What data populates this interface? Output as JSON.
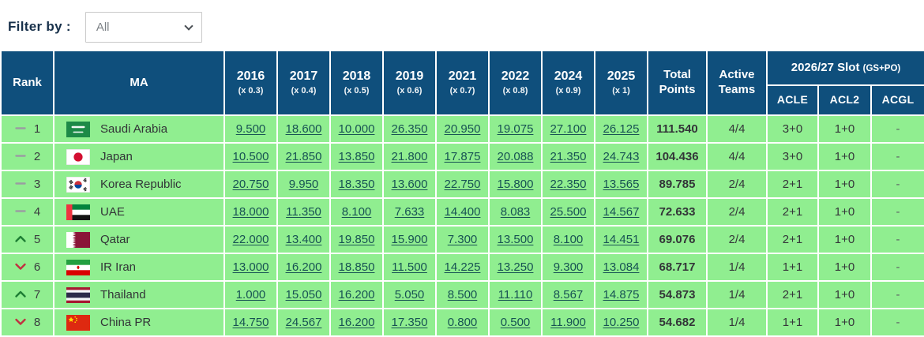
{
  "filter": {
    "label": "Filter by :",
    "selected": "All"
  },
  "table": {
    "headers": {
      "rank": "Rank",
      "ma": "MA",
      "total": "Total Points",
      "active": "Active Teams",
      "slot_title": "2026/27 Slot",
      "slot_suffix": "(GS+PO)",
      "slot_cols": [
        "ACLE",
        "ACL2",
        "ACGL"
      ]
    },
    "years": [
      {
        "year": "2016",
        "multiplier": "(x 0.3)"
      },
      {
        "year": "2017",
        "multiplier": "(x 0.4)"
      },
      {
        "year": "2018",
        "multiplier": "(x 0.5)"
      },
      {
        "year": "2019",
        "multiplier": "(x 0.6)"
      },
      {
        "year": "2021",
        "multiplier": "(x 0.7)"
      },
      {
        "year": "2022",
        "multiplier": "(x 0.8)"
      },
      {
        "year": "2024",
        "multiplier": "(x 0.9)"
      },
      {
        "year": "2025",
        "multiplier": "(x 1)"
      }
    ],
    "rows": [
      {
        "trend": "same",
        "rank": "1",
        "flag": "saudi-arabia",
        "country": "Saudi Arabia",
        "scores": [
          "9.500",
          "18.600",
          "10.000",
          "26.350",
          "20.950",
          "19.075",
          "27.100",
          "26.125"
        ],
        "total": "111.540",
        "active": "4/4",
        "acle": "3+0",
        "acl2": "1+0",
        "acgl": "-"
      },
      {
        "trend": "same",
        "rank": "2",
        "flag": "japan",
        "country": "Japan",
        "scores": [
          "10.500",
          "21.850",
          "13.850",
          "21.800",
          "17.875",
          "20.088",
          "21.350",
          "24.743"
        ],
        "total": "104.436",
        "active": "4/4",
        "acle": "3+0",
        "acl2": "1+0",
        "acgl": "-"
      },
      {
        "trend": "same",
        "rank": "3",
        "flag": "korea-republic",
        "country": "Korea Republic",
        "scores": [
          "20.750",
          "9.950",
          "18.350",
          "13.600",
          "22.750",
          "15.800",
          "22.350",
          "13.565"
        ],
        "total": "89.785",
        "active": "2/4",
        "acle": "2+1",
        "acl2": "1+0",
        "acgl": "-"
      },
      {
        "trend": "same",
        "rank": "4",
        "flag": "uae",
        "country": "UAE",
        "scores": [
          "18.000",
          "11.350",
          "8.100",
          "7.633",
          "14.400",
          "8.083",
          "25.500",
          "14.567"
        ],
        "total": "72.633",
        "active": "2/4",
        "acle": "2+1",
        "acl2": "1+0",
        "acgl": "-"
      },
      {
        "trend": "up",
        "rank": "5",
        "flag": "qatar",
        "country": "Qatar",
        "scores": [
          "22.000",
          "13.400",
          "19.850",
          "15.900",
          "7.300",
          "13.500",
          "8.100",
          "14.451"
        ],
        "total": "69.076",
        "active": "2/4",
        "acle": "2+1",
        "acl2": "1+0",
        "acgl": "-"
      },
      {
        "trend": "down",
        "rank": "6",
        "flag": "ir-iran",
        "country": "IR Iran",
        "scores": [
          "13.000",
          "16.200",
          "18.850",
          "11.500",
          "14.225",
          "13.250",
          "9.300",
          "13.084"
        ],
        "total": "68.717",
        "active": "1/4",
        "acle": "1+1",
        "acl2": "1+0",
        "acgl": "-"
      },
      {
        "trend": "up",
        "rank": "7",
        "flag": "thailand",
        "country": "Thailand",
        "scores": [
          "1.000",
          "15.050",
          "16.200",
          "5.050",
          "8.500",
          "11.110",
          "8.567",
          "14.875"
        ],
        "total": "54.873",
        "active": "1/4",
        "acle": "2+1",
        "acl2": "1+0",
        "acgl": "-"
      },
      {
        "trend": "down",
        "rank": "8",
        "flag": "china-pr",
        "country": "China PR",
        "scores": [
          "14.750",
          "24.567",
          "16.200",
          "17.350",
          "0.800",
          "0.500",
          "11.900",
          "10.250"
        ],
        "total": "54.682",
        "active": "1/4",
        "acle": "1+1",
        "acl2": "1+0",
        "acgl": "-"
      }
    ]
  },
  "colors": {
    "header_bg": "#0f4f7c",
    "row_bg": "#90ee90",
    "link": "#175253",
    "trend_up": "#1e7e34",
    "trend_down": "#c13040",
    "trend_same": "#9a9da1",
    "filter_label": "#17304a"
  }
}
